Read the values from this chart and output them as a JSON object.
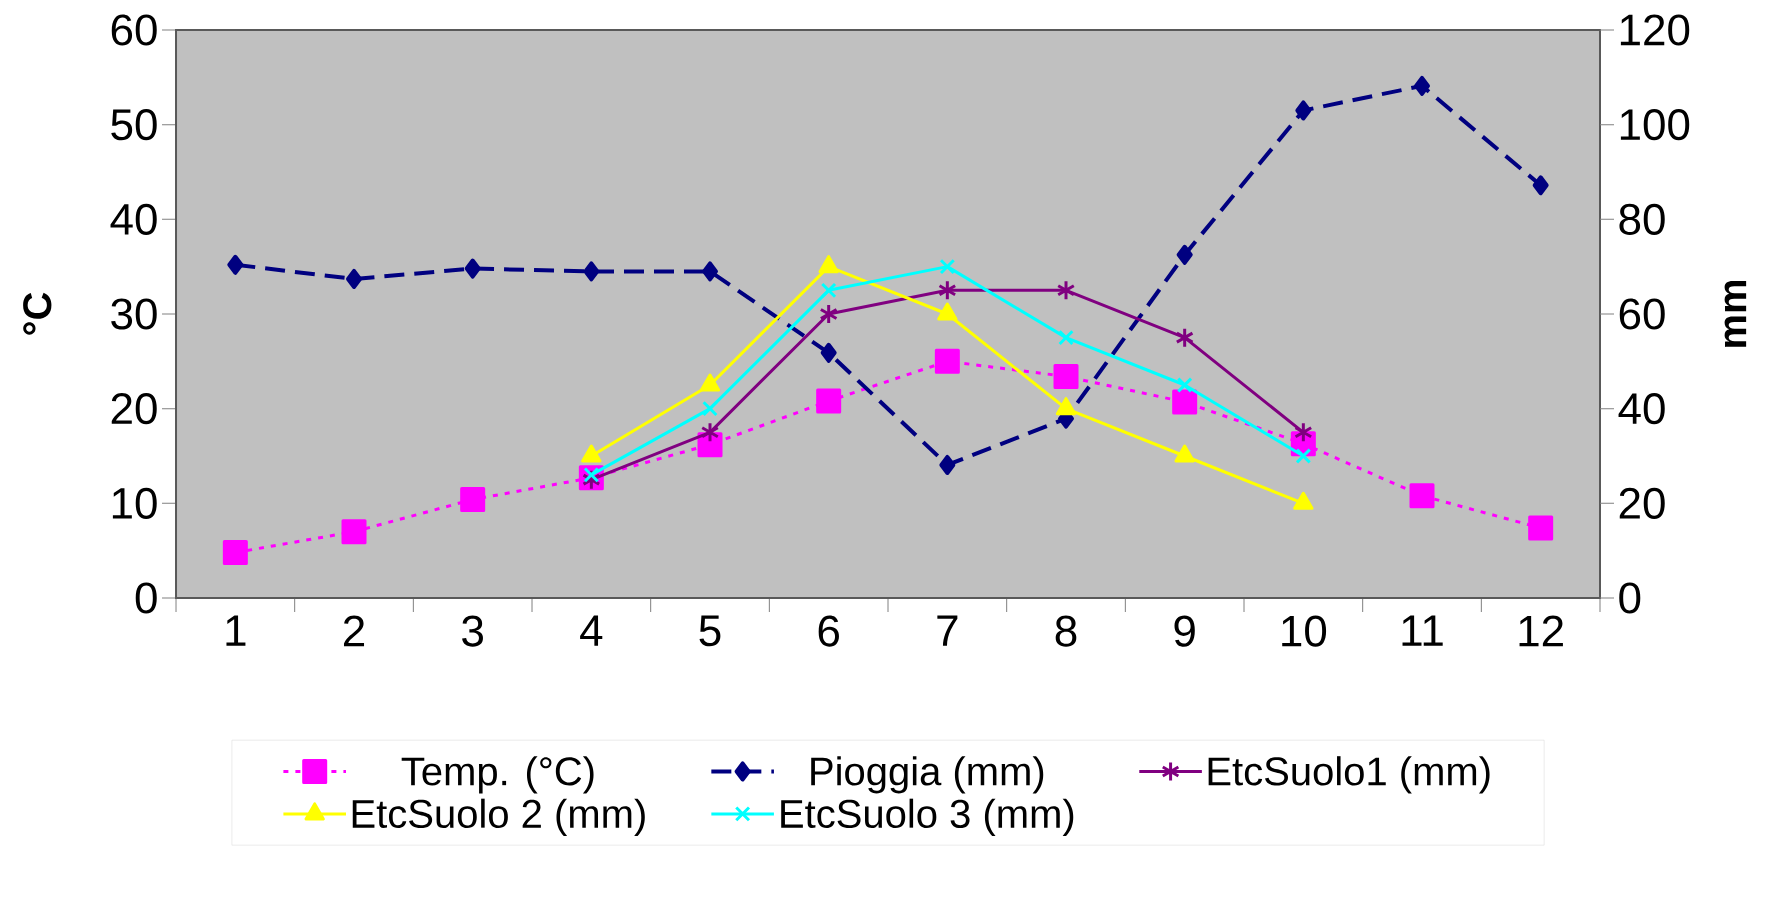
{
  "chart_data": {
    "type": "line",
    "categories": [
      "1",
      "2",
      "3",
      "4",
      "5",
      "6",
      "7",
      "8",
      "9",
      "10",
      "11",
      "12"
    ],
    "ylabel": "°C",
    "y2label": "mm",
    "ylim": [
      0,
      60
    ],
    "yticks": [
      0,
      10,
      20,
      30,
      40,
      50,
      60
    ],
    "y2lim": [
      0,
      120
    ],
    "y2ticks": [
      0,
      20,
      40,
      60,
      80,
      100,
      120
    ],
    "legend": "bottom",
    "series": [
      {
        "name": "Temp. (°C)",
        "color": "#ff00ff",
        "marker": "square",
        "line_style": "dotted",
        "values": [
          4.8,
          7.0,
          10.4,
          12.7,
          16.2,
          20.8,
          25.0,
          23.4,
          20.7,
          16.3,
          10.8,
          7.4
        ]
      },
      {
        "name": "Pioggia (mm)",
        "color": "#000080",
        "axis": "y2",
        "marker": "diamond",
        "line_style": "dashed",
        "values": [
          70.4,
          67.4,
          69.6,
          69,
          69,
          51.8,
          28.1,
          37.9,
          72.5,
          103,
          108.2,
          87.2
        ]
      },
      {
        "name": "EtcSuolo1 (mm)",
        "color": "#800080",
        "axis": "y2",
        "marker": "cross",
        "line_style": "solid",
        "values": [
          null,
          null,
          null,
          25,
          35,
          60,
          65,
          65,
          55,
          35,
          null,
          null
        ]
      },
      {
        "name": "EtcSuolo 2 (mm)",
        "color": "#ffff00",
        "axis": "y2",
        "marker": "triangle",
        "line_style": "solid",
        "values": [
          null,
          null,
          null,
          30,
          45,
          70,
          60,
          40,
          30,
          20,
          null,
          null
        ]
      },
      {
        "name": "EtcSuolo 3 (mm)",
        "color": "#00ffff",
        "axis": "y2",
        "marker": "cross",
        "line_style": "solid",
        "values": [
          null,
          null,
          null,
          26,
          40,
          65,
          70,
          55,
          45,
          30,
          null,
          null
        ]
      }
    ]
  }
}
